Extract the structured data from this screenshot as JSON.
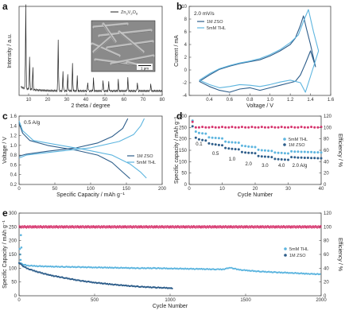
{
  "colors": {
    "dark_blue": "#2d5d8a",
    "light_blue": "#5db5df",
    "pink": "#d6336c",
    "black": "#222222",
    "axis": "#444444",
    "sem_bg": "#8a8a8a"
  },
  "chart_data": [
    {
      "panel": "a",
      "type": "line",
      "xlabel": "2 theta / degree",
      "ylabel": "Intensity / a.u.",
      "xlim": [
        5,
        80
      ],
      "xticks": [
        10,
        20,
        30,
        40,
        50,
        60,
        70,
        80
      ],
      "legend": [
        "Zn3V2O8"
      ],
      "inset_scale_label": "1 μm",
      "peaks": [
        {
          "x": 8.5,
          "y": 0.95
        },
        {
          "x": 10.5,
          "y": 0.35
        },
        {
          "x": 12.2,
          "y": 0.25
        },
        {
          "x": 25.5,
          "y": 0.58
        },
        {
          "x": 28.0,
          "y": 0.22
        },
        {
          "x": 30.5,
          "y": 0.18
        },
        {
          "x": 33.0,
          "y": 0.3
        },
        {
          "x": 35.5,
          "y": 0.16
        },
        {
          "x": 41.0,
          "y": 0.1
        },
        {
          "x": 44.0,
          "y": 0.14
        },
        {
          "x": 49.0,
          "y": 0.12
        },
        {
          "x": 52.0,
          "y": 0.1
        },
        {
          "x": 57.0,
          "y": 0.12
        },
        {
          "x": 62.0,
          "y": 0.15
        },
        {
          "x": 67.0,
          "y": 0.1
        },
        {
          "x": 74.0,
          "y": 0.08
        }
      ],
      "baseline": 0.05
    },
    {
      "panel": "b",
      "type": "line",
      "annotation": "2.0 mV/s",
      "xlabel": "Voltage / V",
      "ylabel": "Current / mA",
      "xlim": [
        0.2,
        1.6
      ],
      "ylim": [
        -4,
        10
      ],
      "xticks": [
        0.4,
        0.6,
        0.8,
        1.0,
        1.2,
        1.4,
        1.6
      ],
      "yticks": [
        -4,
        -2,
        0,
        2,
        4,
        6,
        8,
        10
      ],
      "series": [
        {
          "name": "1M ZSO",
          "color_key": "dark_blue",
          "points": [
            [
              0.3,
              -1.8
            ],
            [
              0.4,
              -2.6
            ],
            [
              0.5,
              -3.2
            ],
            [
              0.6,
              -3.5
            ],
            [
              0.7,
              -3.0
            ],
            [
              0.8,
              -2.8
            ],
            [
              0.9,
              -3.2
            ],
            [
              1.0,
              -2.8
            ],
            [
              1.1,
              -2.4
            ],
            [
              1.2,
              -2.0
            ],
            [
              1.25,
              -1.8
            ],
            [
              1.3,
              -0.8
            ],
            [
              1.35,
              1.0
            ],
            [
              1.4,
              3.0
            ],
            [
              1.45,
              0.5
            ],
            [
              1.4,
              4.0
            ],
            [
              1.36,
              6.5
            ],
            [
              1.33,
              8.5
            ],
            [
              1.3,
              7.0
            ],
            [
              1.25,
              5.0
            ],
            [
              1.2,
              4.0
            ],
            [
              1.1,
              3.0
            ],
            [
              1.0,
              2.2
            ],
            [
              0.9,
              1.6
            ],
            [
              0.8,
              1.3
            ],
            [
              0.7,
              1.0
            ],
            [
              0.6,
              0.6
            ],
            [
              0.5,
              0.1
            ],
            [
              0.4,
              -0.8
            ],
            [
              0.3,
              -1.8
            ]
          ]
        },
        {
          "name": "5mM THL",
          "color_key": "light_blue",
          "points": [
            [
              0.3,
              -1.6
            ],
            [
              0.4,
              -2.3
            ],
            [
              0.5,
              -2.8
            ],
            [
              0.6,
              -2.6
            ],
            [
              0.7,
              -2.3
            ],
            [
              0.8,
              -2.4
            ],
            [
              0.9,
              -2.6
            ],
            [
              1.0,
              -2.3
            ],
            [
              1.1,
              -1.9
            ],
            [
              1.2,
              -1.6
            ],
            [
              1.3,
              -2.0
            ],
            [
              1.35,
              -3.5
            ],
            [
              1.4,
              -1.0
            ],
            [
              1.45,
              1.5
            ],
            [
              1.48,
              3.0
            ],
            [
              1.43,
              6.0
            ],
            [
              1.38,
              9.5
            ],
            [
              1.34,
              8.0
            ],
            [
              1.28,
              5.5
            ],
            [
              1.2,
              4.3
            ],
            [
              1.1,
              3.2
            ],
            [
              1.0,
              2.4
            ],
            [
              0.9,
              1.8
            ],
            [
              0.8,
              1.4
            ],
            [
              0.7,
              1.1
            ],
            [
              0.6,
              0.7
            ],
            [
              0.5,
              0.2
            ],
            [
              0.4,
              -0.6
            ],
            [
              0.3,
              -1.6
            ]
          ]
        }
      ]
    },
    {
      "panel": "c",
      "type": "line",
      "annotation": "0.5 A/g",
      "xlabel": "Specific Capacity / mAh g⁻¹",
      "ylabel": "Voltage / V",
      "xlim": [
        0,
        200
      ],
      "ylim": [
        0.2,
        1.6
      ],
      "xticks": [
        0,
        50,
        100,
        150,
        200
      ],
      "yticks": [
        0.2,
        0.4,
        0.6,
        0.8,
        1.0,
        1.2,
        1.4,
        1.6
      ],
      "series": [
        {
          "name": "1M ZSO",
          "color_key": "dark_blue",
          "discharge": [
            [
              0,
              1.45
            ],
            [
              5,
              1.25
            ],
            [
              15,
              1.1
            ],
            [
              40,
              1.0
            ],
            [
              80,
              0.9
            ],
            [
              110,
              0.8
            ],
            [
              130,
              0.65
            ],
            [
              145,
              0.45
            ],
            [
              155,
              0.32
            ]
          ],
          "charge": [
            [
              0,
              0.78
            ],
            [
              10,
              0.82
            ],
            [
              40,
              0.88
            ],
            [
              80,
              0.95
            ],
            [
              110,
              1.05
            ],
            [
              130,
              1.18
            ],
            [
              145,
              1.35
            ],
            [
              152,
              1.55
            ]
          ]
        },
        {
          "name": "5mM THL",
          "color_key": "light_blue",
          "discharge": [
            [
              0,
              1.5
            ],
            [
              5,
              1.3
            ],
            [
              20,
              1.1
            ],
            [
              50,
              1.02
            ],
            [
              90,
              0.92
            ],
            [
              130,
              0.8
            ],
            [
              155,
              0.62
            ],
            [
              170,
              0.45
            ],
            [
              178,
              0.33
            ]
          ],
          "charge": [
            [
              0,
              0.74
            ],
            [
              10,
              0.8
            ],
            [
              50,
              0.87
            ],
            [
              100,
              0.95
            ],
            [
              140,
              1.08
            ],
            [
              160,
              1.22
            ],
            [
              170,
              1.4
            ],
            [
              175,
              1.55
            ]
          ]
        }
      ]
    },
    {
      "panel": "d",
      "type": "scatter",
      "xlabel": "Cycle Number",
      "ylabel": "Specific capacity / mAh g⁻¹",
      "ylabel_right": "Efficiency / %",
      "xlim": [
        0,
        40
      ],
      "ylim": [
        0,
        300
      ],
      "ylim_right": [
        0,
        120
      ],
      "xticks": [
        0,
        10,
        20,
        30,
        40
      ],
      "yticks": [
        0,
        50,
        100,
        150,
        200,
        250,
        300
      ],
      "yticks_right": [
        0,
        20,
        40,
        60,
        80,
        100,
        120
      ],
      "rate_labels": [
        "0.1",
        "0.5",
        "1.0",
        "2.0",
        "3.0",
        "4.0",
        "2.0 A/g"
      ],
      "series": [
        {
          "name": "5mM THL",
          "color_key": "light_blue",
          "values": [
            280,
            232,
            226,
            224,
            223,
            207,
            205,
            204,
            203,
            202,
            188,
            186,
            185,
            184,
            183,
            170,
            168,
            166,
            165,
            164,
            152,
            150,
            149,
            148,
            147,
            140,
            139,
            138,
            137,
            136,
            145,
            144,
            144,
            143,
            143,
            142,
            142,
            141,
            141,
            140
          ]
        },
        {
          "name": "1M ZSO",
          "color_key": "dark_blue",
          "values": [
            255,
            205,
            198,
            195,
            193,
            180,
            177,
            175,
            173,
            172,
            160,
            158,
            156,
            155,
            154,
            142,
            140,
            139,
            138,
            137,
            125,
            123,
            122,
            121,
            120,
            112,
            111,
            110,
            109,
            108,
            120,
            119,
            118,
            118,
            117,
            117,
            116,
            116,
            115,
            115
          ]
        },
        {
          "name": "Efficiency",
          "axis": "right",
          "color_key": "pink",
          "values": [
            110,
            100,
            100,
            101,
            100,
            100,
            101,
            100,
            100,
            101,
            100,
            100,
            101,
            100,
            100,
            101,
            100,
            100,
            101,
            100,
            100,
            101,
            100,
            100,
            101,
            100,
            100,
            101,
            100,
            100,
            101,
            100,
            100,
            101,
            100,
            100,
            101,
            100,
            100,
            101
          ]
        }
      ]
    },
    {
      "panel": "e",
      "type": "scatter",
      "xlabel": "Cycle Number",
      "ylabel": "Specific Capacity / mAh g⁻¹",
      "ylabel_right": "Efficiency / %",
      "xlim": [
        0,
        2000
      ],
      "ylim": [
        0,
        300
      ],
      "ylim_right": [
        0,
        120
      ],
      "xticks": [
        0,
        500,
        1000,
        1500,
        2000
      ],
      "yticks": [
        0,
        50,
        100,
        150,
        200,
        250,
        300
      ],
      "yticks_right": [
        0,
        20,
        40,
        60,
        80,
        100,
        120
      ],
      "series": [
        {
          "name": "5mM THL",
          "color_key": "light_blue",
          "points": [
            [
              0,
              120
            ],
            [
              20,
              115
            ],
            [
              50,
              110
            ],
            [
              100,
              108
            ],
            [
              200,
              106
            ],
            [
              300,
              105
            ],
            [
              400,
              104
            ],
            [
              500,
              103
            ],
            [
              600,
              102
            ],
            [
              700,
              101
            ],
            [
              800,
              100
            ],
            [
              900,
              100
            ],
            [
              1000,
              99
            ],
            [
              1100,
              98
            ],
            [
              1200,
              97
            ],
            [
              1300,
              96
            ],
            [
              1350,
              96
            ],
            [
              1400,
              102
            ],
            [
              1450,
              95
            ],
            [
              1500,
              92
            ],
            [
              1600,
              88
            ],
            [
              1700,
              85
            ],
            [
              1800,
              83
            ],
            [
              1900,
              80
            ],
            [
              2000,
              78
            ]
          ]
        },
        {
          "name": "1M ZSO",
          "color_key": "dark_blue",
          "points": [
            [
              0,
              120
            ],
            [
              20,
              110
            ],
            [
              50,
              100
            ],
            [
              100,
              90
            ],
            [
              200,
              75
            ],
            [
              300,
              65
            ],
            [
              400,
              55
            ],
            [
              500,
              48
            ],
            [
              600,
              42
            ],
            [
              700,
              37
            ],
            [
              800,
              33
            ],
            [
              900,
              30
            ],
            [
              1000,
              28
            ],
            [
              1020,
              27
            ]
          ]
        },
        {
          "name": "Efficiency",
          "axis": "right",
          "color_key": "pink",
          "points": [
            [
              0,
              100
            ],
            [
              2000,
              100
            ]
          ]
        }
      ]
    }
  ]
}
